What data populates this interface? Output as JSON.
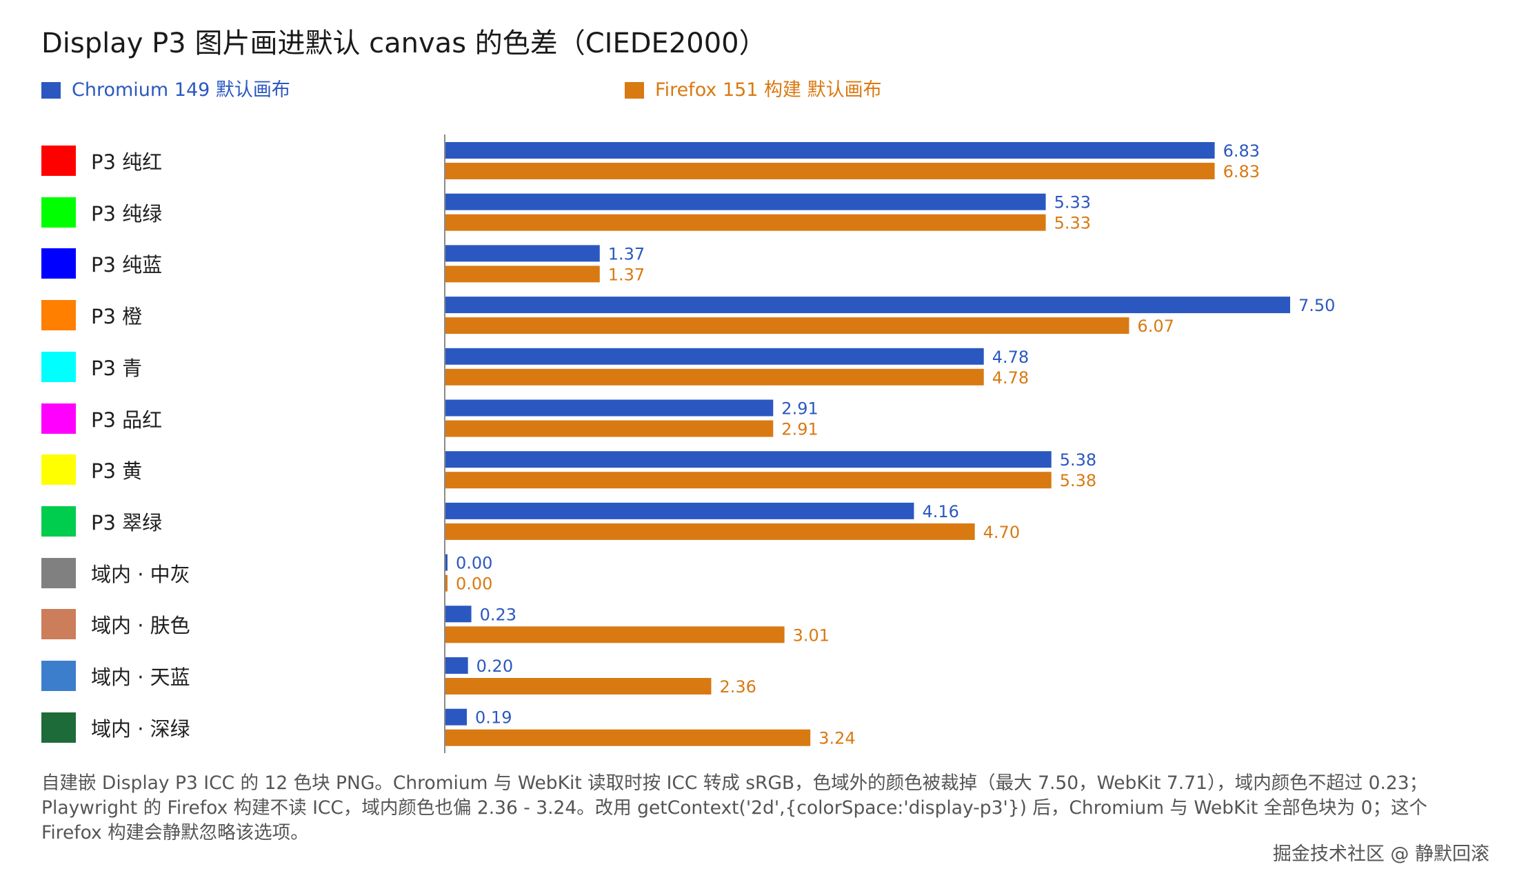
{
  "title": "Display P3 图片画进默认 canvas 的色差（CIEDE2000）",
  "legend": [
    {
      "label": "Chromium 149 默认画布",
      "color": "#2b58c0"
    },
    {
      "label": "Firefox 151 构建 默认画布",
      "color": "#d97912"
    }
  ],
  "footer": "自建嵌 Display P3 ICC 的 12 色块 PNG。Chromium 与 WebKit 读取时按 ICC 转成 sRGB，色域外的颜色被裁掉（最大 7.50，WebKit 7.71），域内颜色不超过 0.23；Playwright 的 Firefox 构建不读 ICC，域内颜色也偏 2.36 - 3.24。改用 getContext('2d',{colorSpace:'display-p3'}) 后，Chromium 与 WebKit 全部色块为 0；这个 Firefox 构建会静默忽略该选项。",
  "watermark": "掘金技术社区 @ 静默回滚",
  "chart_data": {
    "type": "bar",
    "orientation": "horizontal",
    "categories": [
      "P3 纯红",
      "P3 纯绿",
      "P3 纯蓝",
      "P3 橙",
      "P3 青",
      "P3 品红",
      "P3 黄",
      "P3 翠绿",
      "域内 · 中灰",
      "域内 · 肤色",
      "域内 · 天蓝",
      "域内 · 深绿"
    ],
    "category_colors": [
      "#ff0000",
      "#00ff00",
      "#0000ff",
      "#ff7f00",
      "#00ffff",
      "#ff00ff",
      "#ffff00",
      "#00cc4e",
      "#808080",
      "#cc7d5a",
      "#3d7ecc",
      "#1e6b3a"
    ],
    "series": [
      {
        "name": "Chromium 149 默认画布",
        "color": "#2b58c0",
        "values": [
          6.83,
          5.33,
          1.37,
          7.5,
          4.78,
          2.91,
          5.38,
          4.16,
          0.0,
          0.23,
          0.2,
          0.19
        ],
        "labels": [
          "6.83",
          "5.33",
          "1.37",
          "7.50",
          "4.78",
          "2.91",
          "5.38",
          "4.16",
          "0.00",
          "0.23",
          "0.20",
          "0.19"
        ]
      },
      {
        "name": "Firefox 151 构建 默认画布",
        "color": "#d97912",
        "values": [
          6.83,
          5.33,
          1.37,
          6.07,
          4.78,
          2.91,
          5.38,
          4.7,
          0.0,
          3.01,
          2.36,
          3.24
        ],
        "labels": [
          "6.83",
          "5.33",
          "1.37",
          "6.07",
          "4.78",
          "2.91",
          "5.38",
          "4.70",
          "0.00",
          "3.01",
          "2.36",
          "3.24"
        ]
      }
    ],
    "xlim": [
      0,
      10
    ],
    "grid": false,
    "legend_position": "top"
  }
}
